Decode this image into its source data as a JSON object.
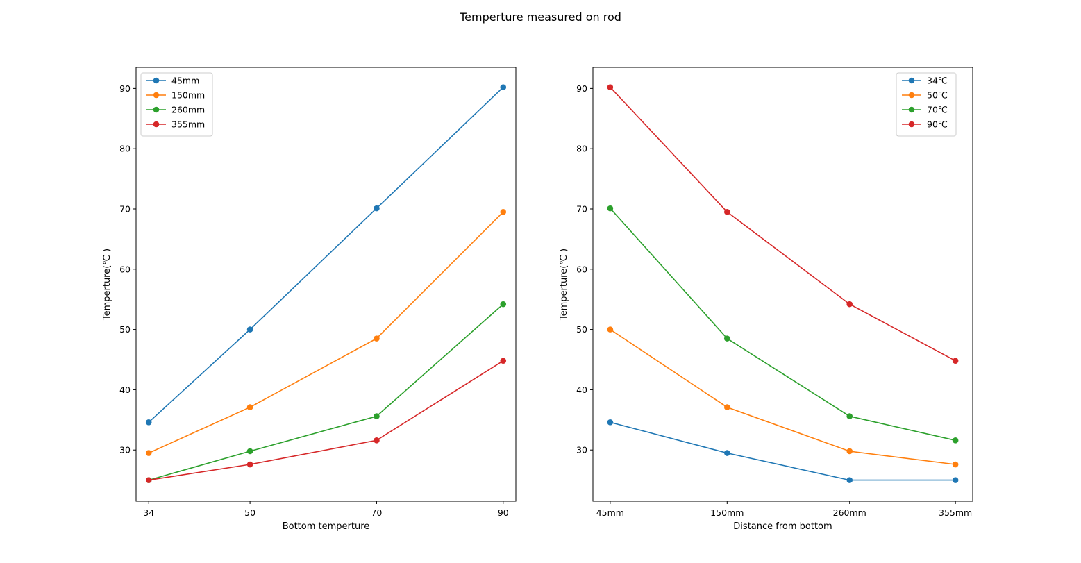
{
  "suptitle": "Temperture measured on rod",
  "chart_data": [
    {
      "type": "line",
      "title": "",
      "xlabel": "Bottom temperture",
      "ylabel": "Temperture(℃ )",
      "categories": [
        "34",
        "50",
        "70",
        "90"
      ],
      "x": [
        34,
        50,
        70,
        90
      ],
      "xlim": [
        32,
        92
      ],
      "ylim": [
        21.5,
        93.5
      ],
      "yticks": [
        30,
        40,
        50,
        60,
        70,
        80,
        90
      ],
      "legend_position": "top-left",
      "series": [
        {
          "name": "45mm",
          "color": "#1f77b4",
          "values": [
            34.6,
            50.0,
            70.1,
            90.2
          ]
        },
        {
          "name": "150mm",
          "color": "#ff7f0e",
          "values": [
            29.5,
            37.1,
            48.5,
            69.5
          ]
        },
        {
          "name": "260mm",
          "color": "#2ca02c",
          "values": [
            25.0,
            29.8,
            35.6,
            54.2
          ]
        },
        {
          "name": "355mm",
          "color": "#d62728",
          "values": [
            25.0,
            27.6,
            31.6,
            44.8
          ]
        }
      ]
    },
    {
      "type": "line",
      "title": "",
      "xlabel": "Distance from bottom",
      "ylabel": "Temperture(℃ )",
      "categories": [
        "45mm",
        "150mm",
        "260mm",
        "355mm"
      ],
      "x": [
        45,
        150,
        260,
        355
      ],
      "xlim": [
        29.5,
        370.5
      ],
      "ylim": [
        21.5,
        93.5
      ],
      "yticks": [
        30,
        40,
        50,
        60,
        70,
        80,
        90
      ],
      "legend_position": "top-right",
      "series": [
        {
          "name": "34℃",
          "color": "#1f77b4",
          "values": [
            34.6,
            29.5,
            25.0,
            25.0
          ]
        },
        {
          "name": "50℃",
          "color": "#ff7f0e",
          "values": [
            50.0,
            37.1,
            29.8,
            27.6
          ]
        },
        {
          "name": "70℃",
          "color": "#2ca02c",
          "values": [
            70.1,
            48.5,
            35.6,
            31.6
          ]
        },
        {
          "name": "90℃",
          "color": "#d62728",
          "values": [
            90.2,
            69.5,
            54.2,
            44.8
          ]
        }
      ]
    }
  ]
}
